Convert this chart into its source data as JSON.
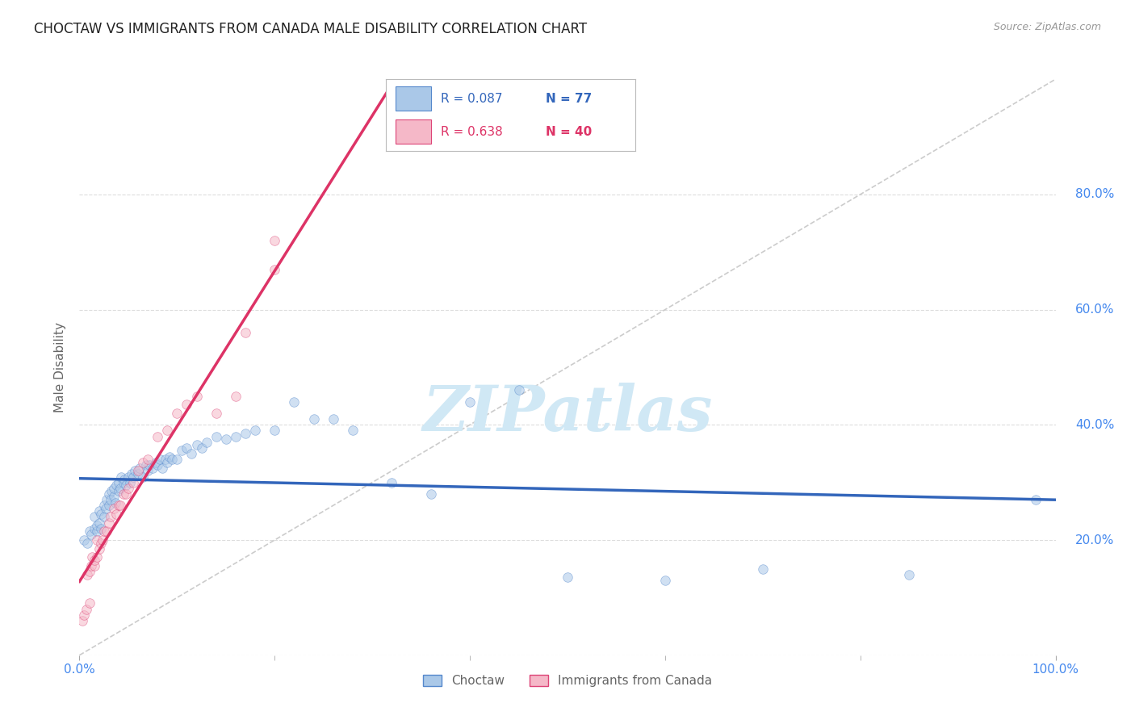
{
  "title": "CHOCTAW VS IMMIGRANTS FROM CANADA MALE DISABILITY CORRELATION CHART",
  "source": "Source: ZipAtlas.com",
  "ylabel": "Male Disability",
  "xlim": [
    0,
    1.0
  ],
  "ylim": [
    0,
    1.0
  ],
  "ytick_positions": [
    0.0,
    0.2,
    0.4,
    0.6,
    0.8
  ],
  "yticklabels_right": [
    "",
    "20.0%",
    "40.0%",
    "60.0%",
    "80.0%"
  ],
  "diagonal_line_color": "#cccccc",
  "choctaw": {
    "R": 0.087,
    "N": 77,
    "color": "#aac8e8",
    "edge_color": "#5588cc",
    "trend_color": "#3366bb",
    "x": [
      0.005,
      0.008,
      0.01,
      0.012,
      0.015,
      0.015,
      0.018,
      0.018,
      0.02,
      0.02,
      0.022,
      0.022,
      0.025,
      0.025,
      0.027,
      0.028,
      0.03,
      0.03,
      0.032,
      0.033,
      0.035,
      0.035,
      0.037,
      0.038,
      0.04,
      0.04,
      0.042,
      0.043,
      0.045,
      0.046,
      0.048,
      0.05,
      0.052,
      0.053,
      0.055,
      0.057,
      0.06,
      0.062,
      0.065,
      0.068,
      0.07,
      0.072,
      0.075,
      0.078,
      0.08,
      0.082,
      0.085,
      0.088,
      0.09,
      0.092,
      0.095,
      0.1,
      0.105,
      0.11,
      0.115,
      0.12,
      0.125,
      0.13,
      0.14,
      0.15,
      0.16,
      0.17,
      0.18,
      0.2,
      0.22,
      0.24,
      0.26,
      0.28,
      0.32,
      0.36,
      0.4,
      0.45,
      0.5,
      0.6,
      0.7,
      0.85,
      0.98
    ],
    "y": [
      0.2,
      0.195,
      0.215,
      0.21,
      0.22,
      0.24,
      0.215,
      0.225,
      0.23,
      0.25,
      0.22,
      0.245,
      0.24,
      0.26,
      0.255,
      0.27,
      0.26,
      0.28,
      0.27,
      0.285,
      0.275,
      0.29,
      0.265,
      0.295,
      0.285,
      0.3,
      0.29,
      0.31,
      0.3,
      0.305,
      0.295,
      0.31,
      0.3,
      0.315,
      0.31,
      0.32,
      0.315,
      0.325,
      0.31,
      0.33,
      0.32,
      0.33,
      0.325,
      0.335,
      0.33,
      0.34,
      0.325,
      0.34,
      0.335,
      0.345,
      0.34,
      0.34,
      0.355,
      0.36,
      0.35,
      0.365,
      0.36,
      0.37,
      0.38,
      0.375,
      0.38,
      0.385,
      0.39,
      0.39,
      0.44,
      0.41,
      0.41,
      0.39,
      0.3,
      0.28,
      0.44,
      0.46,
      0.135,
      0.13,
      0.15,
      0.14,
      0.27
    ]
  },
  "canada": {
    "R": 0.638,
    "N": 40,
    "color": "#f5b8c8",
    "edge_color": "#dd4477",
    "trend_color": "#dd3366",
    "x": [
      0.003,
      0.005,
      0.007,
      0.008,
      0.01,
      0.01,
      0.012,
      0.013,
      0.015,
      0.015,
      0.018,
      0.018,
      0.02,
      0.022,
      0.024,
      0.025,
      0.028,
      0.03,
      0.032,
      0.035,
      0.038,
      0.04,
      0.042,
      0.045,
      0.048,
      0.05,
      0.055,
      0.06,
      0.065,
      0.07,
      0.08,
      0.09,
      0.1,
      0.11,
      0.12,
      0.14,
      0.16,
      0.17,
      0.2,
      0.2
    ],
    "y": [
      0.06,
      0.07,
      0.08,
      0.14,
      0.09,
      0.145,
      0.155,
      0.17,
      0.155,
      0.165,
      0.17,
      0.2,
      0.185,
      0.195,
      0.2,
      0.215,
      0.215,
      0.23,
      0.24,
      0.255,
      0.245,
      0.26,
      0.26,
      0.28,
      0.28,
      0.29,
      0.3,
      0.32,
      0.335,
      0.34,
      0.38,
      0.39,
      0.42,
      0.435,
      0.45,
      0.42,
      0.45,
      0.56,
      0.67,
      0.72
    ]
  },
  "watermark": "ZIPatlas",
  "watermark_color": "#d0e8f5",
  "background_color": "#ffffff",
  "grid_color": "#dddddd",
  "title_color": "#222222",
  "axis_label_color": "#666666",
  "tick_label_color": "#4488ee",
  "marker_size": 70,
  "marker_alpha": 0.55
}
